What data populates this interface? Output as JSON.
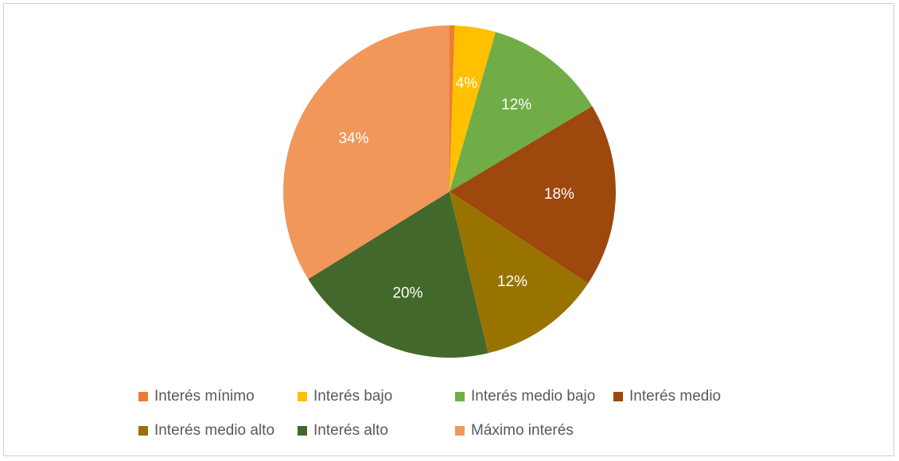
{
  "chart_data": {
    "type": "pie",
    "legend_position": "bottom",
    "slices": [
      {
        "name": "Interés mínimo",
        "value": 0.5,
        "label": "",
        "color": "#ED7D31"
      },
      {
        "name": "Interés bajo",
        "value": 4,
        "label": "4%",
        "color": "#FFC000"
      },
      {
        "name": "Interés medio bajo",
        "value": 12,
        "label": "12%",
        "color": "#70AD47"
      },
      {
        "name": "Interés medio",
        "value": 18,
        "label": "18%",
        "color": "#9E480E"
      },
      {
        "name": "Interés medio alto",
        "value": 12,
        "label": "12%",
        "color": "#997300"
      },
      {
        "name": "Interés alto",
        "value": 20,
        "label": "20%",
        "color": "#43682B"
      },
      {
        "name": "Máximo interés",
        "value": 34,
        "label": "34%",
        "color": "#F1975A"
      }
    ]
  }
}
